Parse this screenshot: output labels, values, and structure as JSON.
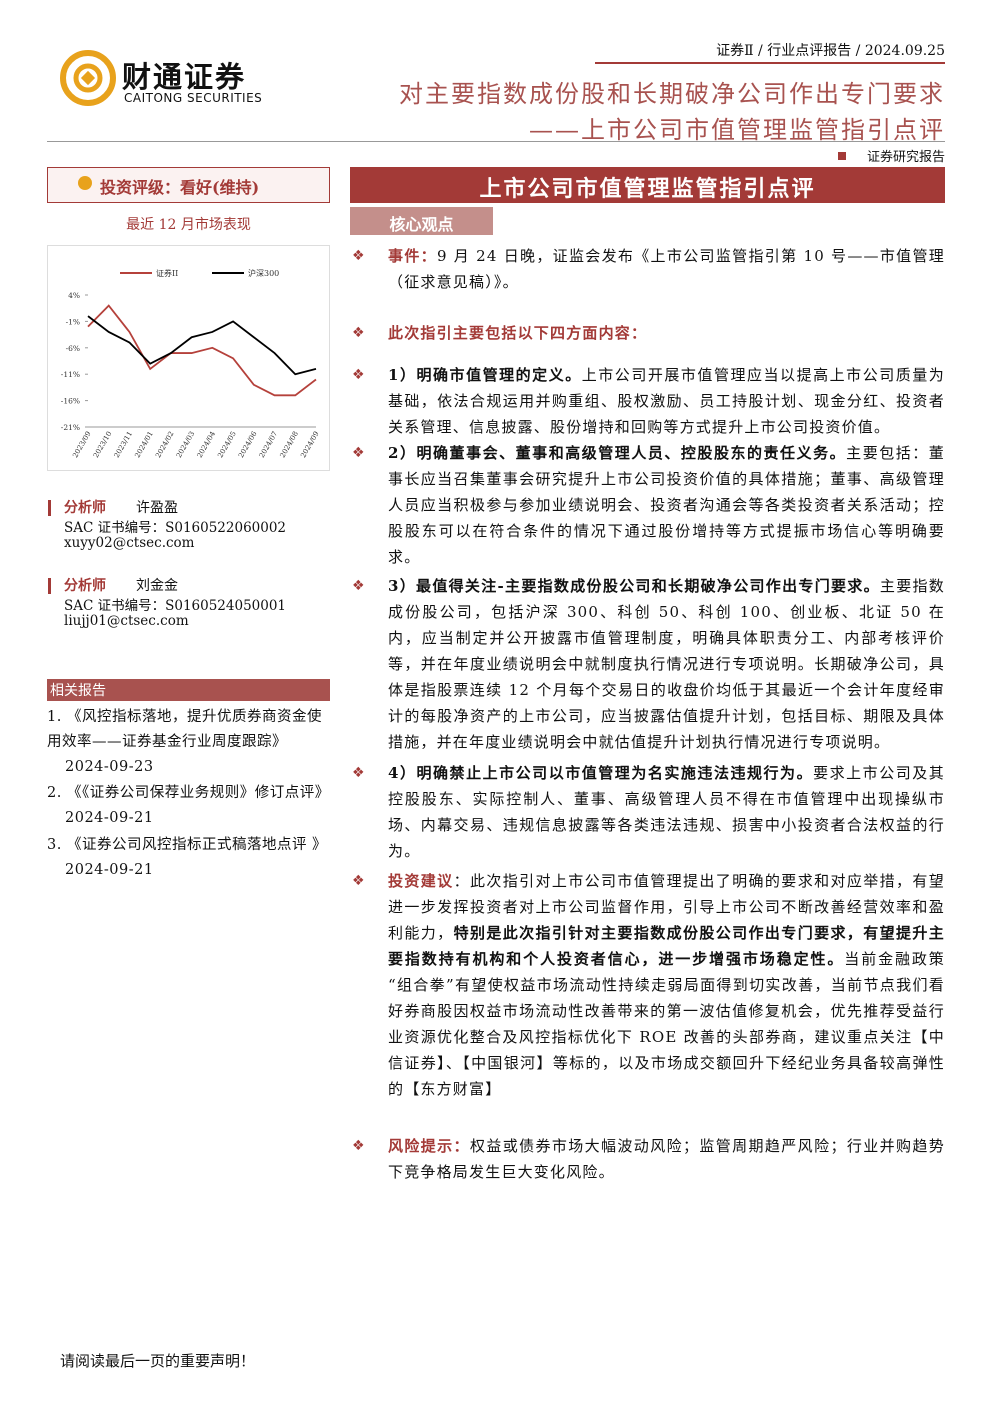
{
  "header": {
    "logo_cn": "财通证券",
    "logo_en": "CAITONG SECURITIES",
    "breadcrumb": "证券Ⅱ / 行业点评报告 / 2024.09.25",
    "title_line1": "对主要指数成份股和长期破净公司作出专门要求",
    "title_line2": "——上市公司市值管理监管指引点评",
    "report_type": "证券研究报告"
  },
  "sidebar": {
    "rating": "投资评级：看好(维持)",
    "chart_caption": "最近 12 月市场表现",
    "analysts": [
      {
        "role": "分析师",
        "name": "许盈盈",
        "sac": "SAC 证书编号：S0160522060002",
        "email": "xuyy02@ctsec.com"
      },
      {
        "role": "分析师",
        "name": "刘金金",
        "sac": "SAC 证书编号：S0160524050001",
        "email": "liujj01@ctsec.com"
      }
    ],
    "related_title": "相关报告",
    "related": [
      {
        "title": "1. 《风控指标落地，提升优质券商资金使用效率——证券基金行业周度跟踪》",
        "date": "2024-09-23"
      },
      {
        "title": "2. 《《证券公司保荐业务规则》修订点评》",
        "date": "2024-09-21"
      },
      {
        "title": "3. 《证券公司风控指标正式稿落地点评 》",
        "date": "2024-09-21"
      }
    ]
  },
  "chart_data": {
    "type": "line",
    "categories": [
      "2023/09",
      "2023/10",
      "2023/11",
      "2024/01",
      "2024/02",
      "2024/03",
      "2024/04",
      "2024/05",
      "2024/06",
      "2024/07",
      "2024/08",
      "2024/09"
    ],
    "series": [
      {
        "name": "证券II",
        "color": "#b5413b",
        "values": [
          -2,
          2,
          -3,
          -10,
          -7,
          -7,
          -6,
          -8,
          -13,
          -15,
          -15,
          -12
        ]
      },
      {
        "name": "沪深300",
        "color": "#000000",
        "values": [
          0,
          -3,
          -5,
          -9,
          -7,
          -4,
          -3,
          -1,
          -4,
          -7,
          -11,
          -10
        ]
      }
    ],
    "ylim": [
      -21,
      4
    ],
    "yticks": [
      {
        "value": 4,
        "label": "4%"
      },
      {
        "value": -1,
        "label": "-1%"
      },
      {
        "value": -6,
        "label": "-6%"
      },
      {
        "value": -11,
        "label": "-11%"
      },
      {
        "value": -16,
        "label": "-16%"
      },
      {
        "value": -21,
        "label": "-21%"
      }
    ]
  },
  "main": {
    "title": "上市公司市值管理监管指引点评",
    "section": "核心观点",
    "points": [
      {
        "parts": [
          {
            "style": "red",
            "text": "事件："
          },
          {
            "style": "plain",
            "text": "9 月 24 日晚，证监会发布《上市公司监管指引第 10 号——市值管理（征求意见稿）》。"
          }
        ]
      },
      {
        "parts": [
          {
            "style": "red",
            "text": "此次指引主要包括以下四方面内容："
          }
        ]
      },
      {
        "parts": [
          {
            "style": "bold",
            "text": "1）明确市值管理的定义。"
          },
          {
            "style": "plain",
            "text": "上市公司开展市值管理应当以提高上市公司质量为基础，依法合规运用并购重组、股权激励、员工持股计划、现金分红、投资者关系管理、信息披露、股份增持和回购等方式提升上市公司投资价值。"
          }
        ]
      },
      {
        "parts": [
          {
            "style": "bold",
            "text": "2）明确董事会、董事和高级管理人员、控股股东的责任义务。"
          },
          {
            "style": "plain",
            "text": "主要包括：董事长应当召集董事会研究提升上市公司投资价值的具体措施；董事、高级管理人员应当积极参与参加业绩说明会、投资者沟通会等各类投资者关系活动；控股股东可以在符合条件的情况下通过股份增持等方式提振市场信心等明确要求。"
          }
        ]
      },
      {
        "parts": [
          {
            "style": "bold",
            "text": "3）最值得关注-主要指数成份股公司和长期破净公司作出专门要求。"
          },
          {
            "style": "plain",
            "text": "主要指数成份股公司，包括沪深 300、科创 50、科创 100、创业板、北证 50 在内，应当制定并公开披露市值管理制度，明确具体职责分工、内部考核评价等，并在年度业绩说明会中就制度执行情况进行专项说明。长期破净公司，具体是指股票连续 12 个月每个交易日的收盘价均低于其最近一个会计年度经审计的每股净资产的上市公司，应当披露估值提升计划，包括目标、期限及具体措施，并在年度业绩说明会中就估值提升计划执行情况进行专项说明。"
          }
        ]
      },
      {
        "parts": [
          {
            "style": "bold",
            "text": "4）明确禁止上市公司以市值管理为名实施违法违规行为。"
          },
          {
            "style": "plain",
            "text": "要求上市公司及其控股股东、实际控制人、董事、高级管理人员不得在市值管理中出现操纵市场、内幕交易、违规信息披露等各类违法违规、损害中小投资者合法权益的行为。"
          }
        ]
      },
      {
        "parts": [
          {
            "style": "red",
            "text": "投资建议"
          },
          {
            "style": "plain",
            "text": "：此次指引对上市公司市值管理提出了明确的要求和对应举措，有望进一步发挥投资者对上市公司监督作用，引导上市公司不断改善经营效率和盈利能力，"
          },
          {
            "style": "bold",
            "text": "特别是此次指引针对主要指数成份股公司作出专门要求，有望提升主要指数持有机构和个人投资者信心，进一步增强市场稳定性。"
          },
          {
            "style": "plain",
            "text": "当前金融政策“组合拳”有望使权益市场流动性持续走弱局面得到切实改善，当前节点我们看好券商股因权益市场流动性改善带来的第一波估值修复机会，优先推荐受益行业资源优化整合及风控指标优化下 ROE 改善的头部券商，建议重点关注【中信证券】、【中国银河】等标的，以及市场成交额回升下经纪业务具备较高弹性的【东方财富】"
          }
        ]
      },
      {
        "parts": [
          {
            "style": "red",
            "text": "风险提示："
          },
          {
            "style": "plain",
            "text": "权益或债券市场大幅波动风险；监管周期趋严风险；行业并购趋势下竞争格局发生巨大变化风险。"
          }
        ]
      }
    ]
  },
  "footer": "请阅读最后一页的重要声明！"
}
